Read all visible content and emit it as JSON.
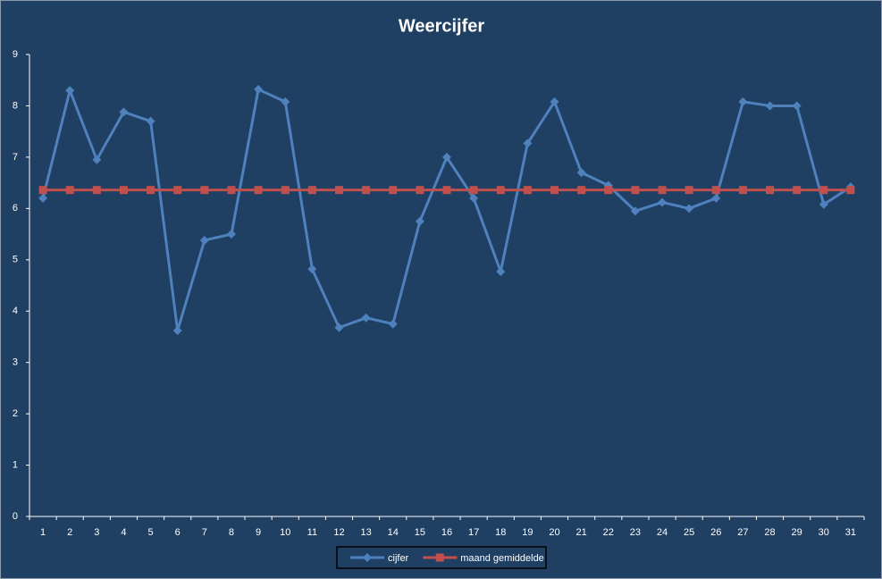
{
  "chart_data": {
    "type": "line",
    "title": "Weercijfer",
    "categories": [
      1,
      2,
      3,
      4,
      5,
      6,
      7,
      8,
      9,
      10,
      11,
      12,
      13,
      14,
      15,
      16,
      17,
      18,
      19,
      20,
      21,
      22,
      23,
      24,
      25,
      26,
      27,
      28,
      29,
      30,
      31
    ],
    "series": [
      {
        "name": "cijfer",
        "color": "#4f81bd",
        "marker": "diamond",
        "values": [
          6.2,
          8.3,
          6.95,
          7.88,
          7.7,
          3.62,
          5.38,
          5.5,
          8.32,
          8.08,
          4.82,
          3.68,
          3.87,
          3.75,
          5.75,
          7.0,
          6.2,
          4.77,
          7.27,
          8.08,
          6.7,
          6.45,
          5.95,
          6.12,
          6.0,
          6.2,
          8.08,
          8.0,
          8.0,
          6.08,
          6.42
        ]
      },
      {
        "name": "maand gemiddelde",
        "color": "#c0504d",
        "marker": "square",
        "values": [
          6.36,
          6.36,
          6.36,
          6.36,
          6.36,
          6.36,
          6.36,
          6.36,
          6.36,
          6.36,
          6.36,
          6.36,
          6.36,
          6.36,
          6.36,
          6.36,
          6.36,
          6.36,
          6.36,
          6.36,
          6.36,
          6.36,
          6.36,
          6.36,
          6.36,
          6.36,
          6.36,
          6.36,
          6.36,
          6.36,
          6.36
        ]
      }
    ],
    "ylim": [
      0,
      9
    ],
    "yticks": [
      0,
      1,
      2,
      3,
      4,
      5,
      6,
      7,
      8,
      9
    ],
    "grid": false,
    "legend": "bottom"
  }
}
